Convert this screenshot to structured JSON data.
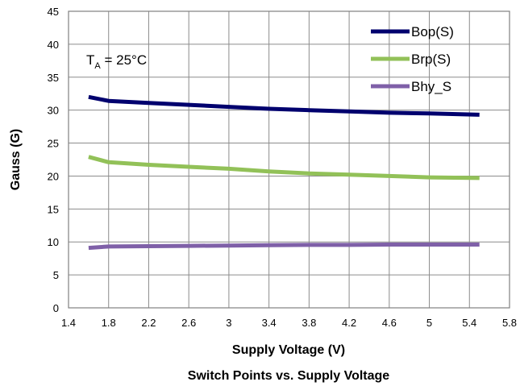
{
  "chart_data": {
    "type": "line",
    "title": "Switch Points vs. Supply Voltage",
    "xlabel": "Supply Voltage (V)",
    "ylabel": "Gauss (G)",
    "xlim": [
      1.4,
      5.8
    ],
    "ylim": [
      0,
      45
    ],
    "xticks": [
      "1.4",
      "1.8",
      "2.2",
      "2.6",
      "3",
      "3.4",
      "3.8",
      "4.2",
      "4.6",
      "5",
      "5.4",
      "5.8"
    ],
    "yticks": [
      "0",
      "5",
      "10",
      "15",
      "20",
      "25",
      "30",
      "35",
      "40",
      "45"
    ],
    "grid": true,
    "legend_position": "top-right",
    "annotation": {
      "base": "T",
      "sub": "A",
      "rest": " = 25°C"
    },
    "x": [
      1.6,
      1.8,
      2.2,
      2.6,
      3.0,
      3.4,
      3.8,
      4.2,
      4.6,
      5.0,
      5.5
    ],
    "series": [
      {
        "name": "Bop(S)",
        "color": "#00006e",
        "values": [
          32.0,
          31.4,
          31.1,
          30.8,
          30.5,
          30.2,
          30.0,
          29.8,
          29.6,
          29.5,
          29.3
        ]
      },
      {
        "name": "Brp(S)",
        "color": "#92c158",
        "values": [
          22.9,
          22.1,
          21.7,
          21.4,
          21.1,
          20.7,
          20.4,
          20.2,
          20.0,
          19.8,
          19.7
        ]
      },
      {
        "name": "Bhy_S",
        "color": "#7f60a8",
        "values": [
          9.1,
          9.3,
          9.35,
          9.4,
          9.45,
          9.5,
          9.55,
          9.55,
          9.6,
          9.6,
          9.6
        ]
      }
    ]
  }
}
